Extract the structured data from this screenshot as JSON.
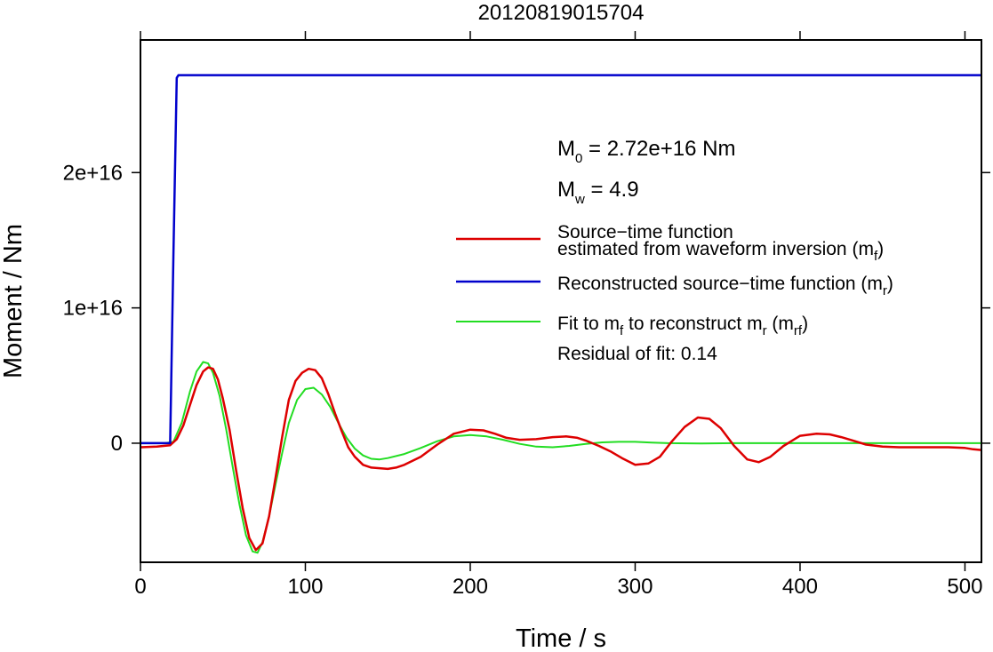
{
  "chart_data": {
    "type": "line",
    "title": "20120819015704",
    "xlabel": "Time / s",
    "ylabel": "Moment / Nm",
    "xlim": [
      0,
      510
    ],
    "ylim": [
      -8800000000000000.0,
      2.98e+16
    ],
    "x_ticks": [
      0,
      100,
      200,
      300,
      400,
      500
    ],
    "x_tick_labels": [
      "0",
      "100",
      "200",
      "300",
      "400",
      "500"
    ],
    "y_ticks": [
      0,
      1e+16,
      2e+16
    ],
    "y_tick_labels": [
      "0",
      "1e+16",
      "2e+16"
    ],
    "grid": false,
    "legend_position": "right",
    "annotations": {
      "m0": {
        "prefix": "M",
        "sub": "0",
        "text": " = 2.72e+16 Nm"
      },
      "mw": {
        "prefix": "M",
        "sub": "w",
        "text": " = 4.9"
      },
      "residual": "Residual of fit: 0.14"
    },
    "legend": [
      {
        "line1": "Source−time function",
        "line2": "estimated from waveform inversion (m",
        "sub": "f",
        "close": ")"
      },
      {
        "text": "Reconstructed source−time function (m",
        "sub": "r",
        "close": ")"
      },
      {
        "text": "Fit to m",
        "sub1": "f",
        "mid": " to reconstruct m",
        "sub2": "r",
        "mid2": " (m",
        "sub3": "rf",
        "close": ")"
      }
    ],
    "series": [
      {
        "name": "Source−time function estimated from waveform inversion (mf)",
        "color": "#dd0000",
        "x": [
          0,
          10,
          18,
          22,
          26,
          30,
          34,
          38,
          41,
          44,
          47,
          50,
          54,
          58,
          62,
          66,
          70,
          74,
          78,
          82,
          86,
          90,
          94,
          98,
          102,
          106,
          110,
          114,
          118,
          122,
          126,
          130,
          135,
          140,
          145,
          150,
          155,
          160,
          170,
          180,
          190,
          200,
          208,
          215,
          222,
          230,
          240,
          250,
          258,
          265,
          270,
          278,
          285,
          292,
          300,
          308,
          315,
          322,
          330,
          338,
          345,
          352,
          360,
          368,
          375,
          382,
          390,
          400,
          410,
          418,
          425,
          432,
          440,
          450,
          460,
          470,
          480,
          490,
          500,
          505,
          510
        ],
        "y": [
          -300000000000000.0,
          -250000000000000.0,
          -150000000000000.0,
          300000000000000.0,
          1300000000000000.0,
          2800000000000000.0,
          4300000000000000.0,
          5300000000000000.0,
          5600000000000000.0,
          5500000000000000.0,
          4700000000000000.0,
          3300000000000000.0,
          1000000000000000.0,
          -2000000000000000.0,
          -4800000000000000.0,
          -7000000000000000.0,
          -7900000000000000.0,
          -7400000000000000.0,
          -5400000000000000.0,
          -2500000000000000.0,
          500000000000000.0,
          3200000000000000.0,
          4600000000000000.0,
          5200000000000000.0,
          5500000000000000.0,
          5400000000000000.0,
          4800000000000000.0,
          3600000000000000.0,
          2200000000000000.0,
          900000000000000.0,
          -300000000000000.0,
          -1000000000000000.0,
          -1600000000000000.0,
          -1800000000000000.0,
          -1850000000000000.0,
          -1900000000000000.0,
          -1800000000000000.0,
          -1600000000000000.0,
          -1000000000000000.0,
          -100000000000000.0,
          700000000000000.0,
          1000000000000000.0,
          950000000000000.0,
          700000000000000.0,
          400000000000000.0,
          250000000000000.0,
          300000000000000.0,
          450000000000000.0,
          500000000000000.0,
          400000000000000.0,
          200000000000000.0,
          -200000000000000.0,
          -600000000000000.0,
          -1100000000000000.0,
          -1600000000000000.0,
          -1500000000000000.0,
          -1000000000000000.0,
          100000000000000.0,
          1200000000000000.0,
          1900000000000000.0,
          1800000000000000.0,
          1100000000000000.0,
          -200000000000000.0,
          -1200000000000000.0,
          -1400000000000000.0,
          -1000000000000000.0,
          -200000000000000.0,
          550000000000000.0,
          700000000000000.0,
          650000000000000.0,
          450000000000000.0,
          200000000000000.0,
          -100000000000000.0,
          -250000000000000.0,
          -300000000000000.0,
          -300000000000000.0,
          -300000000000000.0,
          -300000000000000.0,
          -350000000000000.0,
          -450000000000000.0,
          -500000000000000.0
        ]
      },
      {
        "name": "Reconstructed source−time function (mr)",
        "color": "#0000cc",
        "x": [
          0,
          18,
          20,
          22,
          23,
          510
        ],
        "y": [
          0,
          0,
          1.4e+16,
          2.7e+16,
          2.72e+16,
          2.72e+16
        ]
      },
      {
        "name": "Fit to mf to reconstruct mr (mrf)",
        "color": "#22dd22",
        "x": [
          0,
          15,
          20,
          25,
          30,
          34,
          38,
          41,
          44,
          48,
          52,
          56,
          60,
          64,
          68,
          71,
          74,
          78,
          82,
          86,
          90,
          95,
          100,
          105,
          110,
          115,
          120,
          125,
          130,
          135,
          140,
          145,
          150,
          160,
          170,
          180,
          190,
          200,
          210,
          220,
          230,
          240,
          250,
          260,
          270,
          280,
          290,
          300,
          310,
          320,
          340,
          360,
          380,
          400,
          420,
          440,
          460,
          480,
          500,
          510
        ],
        "y": [
          0,
          0,
          100000000000000.0,
          1500000000000000.0,
          3800000000000000.0,
          5300000000000000.0,
          6000000000000000.0,
          5900000000000000.0,
          5200000000000000.0,
          3500000000000000.0,
          1000000000000000.0,
          -1800000000000000.0,
          -4500000000000000.0,
          -6800000000000000.0,
          -8000000000000000.0,
          -8100000000000000.0,
          -7300000000000000.0,
          -5400000000000000.0,
          -3000000000000000.0,
          -700000000000000.0,
          1500000000000000.0,
          3200000000000000.0,
          4000000000000000.0,
          4100000000000000.0,
          3600000000000000.0,
          2700000000000000.0,
          1500000000000000.0,
          400000000000000.0,
          -400000000000000.0,
          -900000000000000.0,
          -1150000000000000.0,
          -1200000000000000.0,
          -1100000000000000.0,
          -800000000000000.0,
          -350000000000000.0,
          150000000000000.0,
          500000000000000.0,
          600000000000000.0,
          500000000000000.0,
          250000000000000.0,
          -50000000000000.0,
          -250000000000000.0,
          -300000000000000.0,
          -200000000000000.0,
          -50000000000000.0,
          60000000000000.0,
          100000000000000.0,
          100000000000000.0,
          50000000000000.0,
          0,
          -20000000000000.0,
          0,
          0,
          0,
          0,
          0,
          0,
          0,
          0,
          0
        ]
      }
    ]
  }
}
